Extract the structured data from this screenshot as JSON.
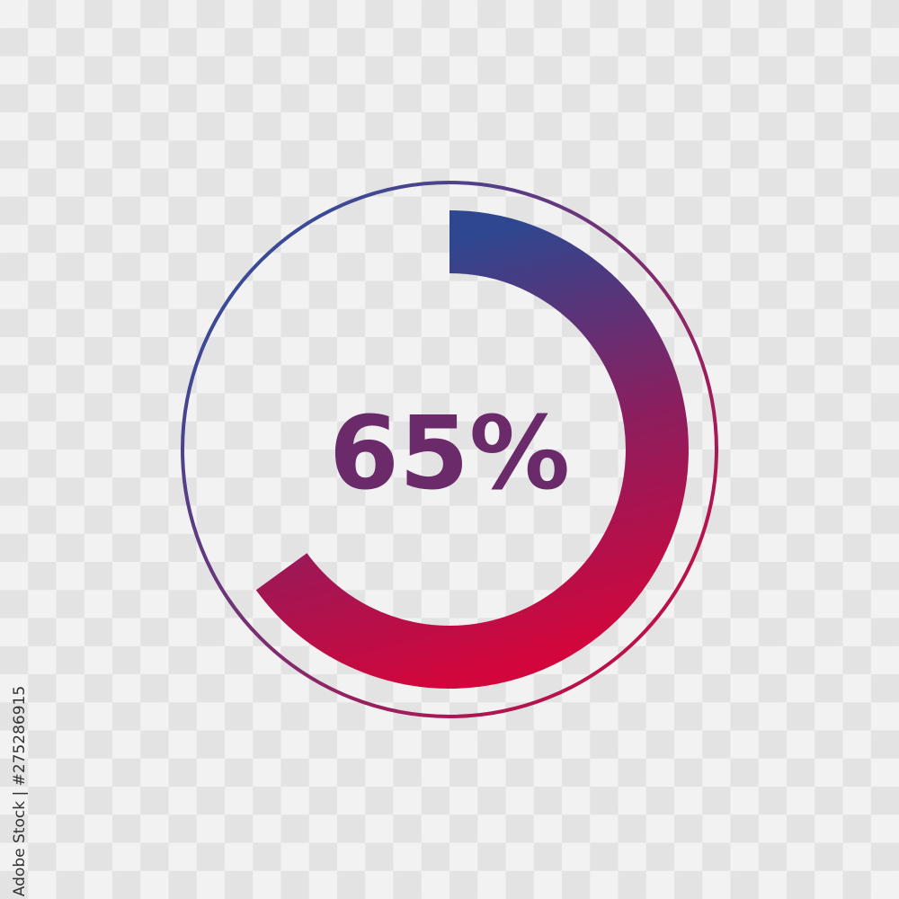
{
  "chart_data": {
    "type": "pie",
    "style": "progress-ring",
    "values": [
      65
    ],
    "max": 100,
    "label": "65%",
    "colors": {
      "gradient_start": "#1f57a6",
      "gradient_end": "#d6043a",
      "label": "#6b2b6b"
    }
  },
  "watermark": {
    "credit": "Adobe Stock | #275286915"
  }
}
